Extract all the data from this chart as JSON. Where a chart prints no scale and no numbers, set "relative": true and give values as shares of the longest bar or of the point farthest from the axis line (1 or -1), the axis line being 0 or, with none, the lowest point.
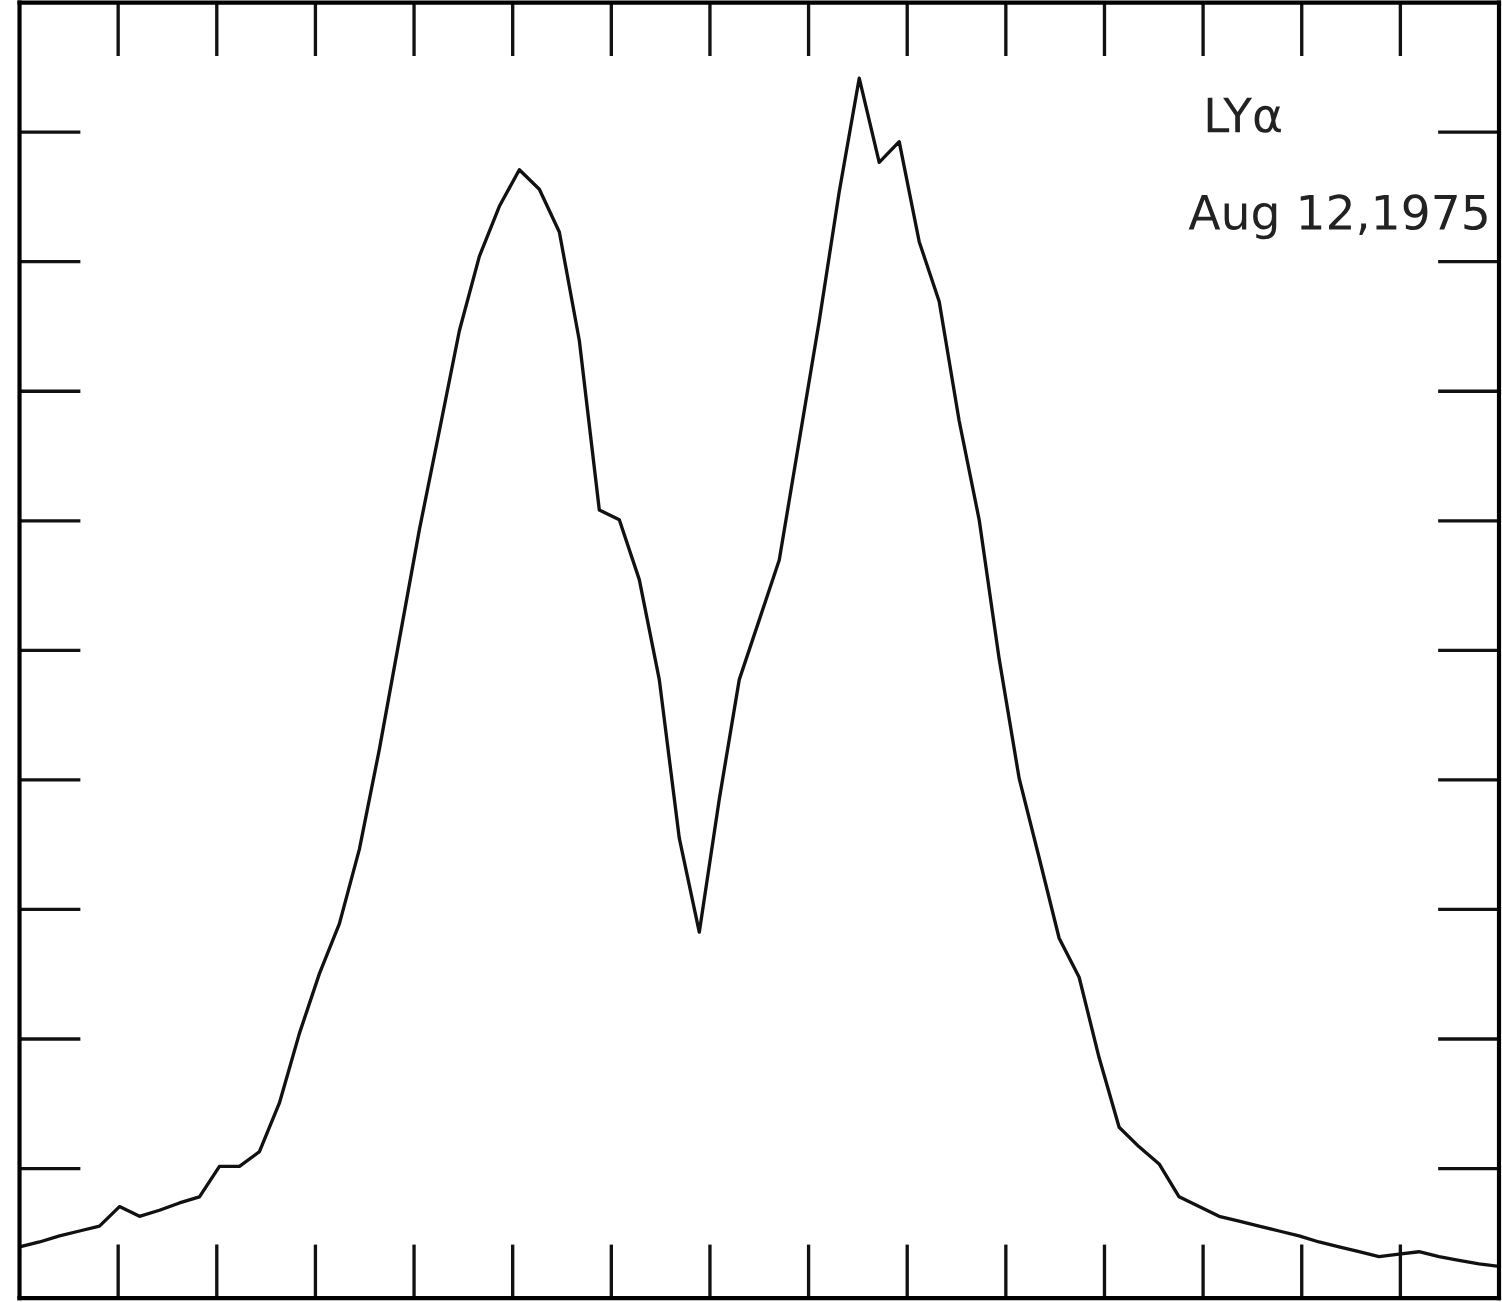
{
  "chart_data": {
    "type": "line",
    "relative": true,
    "marker": "none",
    "line_style": "solid",
    "annotations": [
      "LYα",
      "Aug 12,1975"
    ],
    "categories": [
      null,
      null,
      null,
      null,
      null,
      null,
      null,
      null,
      null,
      null,
      null,
      null,
      null,
      null,
      null,
      null,
      null,
      null,
      null,
      null,
      null,
      null,
      null,
      null,
      null,
      null,
      null,
      null,
      null,
      null,
      null,
      null,
      null,
      null,
      null,
      null,
      null,
      null,
      null,
      null,
      null,
      null,
      null,
      null,
      null,
      null,
      null,
      null,
      null,
      null,
      null,
      null,
      null,
      null,
      null,
      null,
      null,
      null,
      null,
      null,
      null,
      null,
      null,
      null,
      null,
      null,
      null,
      null,
      null,
      null,
      null,
      null,
      null,
      null,
      null
    ],
    "series": [
      {
        "color": "#111111",
        "values": [
          0.042,
          0.046,
          0.051,
          0.055,
          0.059,
          0.075,
          0.067,
          0.072,
          0.078,
          0.083,
          0.108,
          0.108,
          0.12,
          0.16,
          0.217,
          0.266,
          0.307,
          0.368,
          0.45,
          0.54,
          0.63,
          0.711,
          0.793,
          0.854,
          0.895,
          0.925,
          0.909,
          0.874,
          0.785,
          0.646,
          0.638,
          0.589,
          0.507,
          0.377,
          0.3,
          0.409,
          0.507,
          0.556,
          0.605,
          0.703,
          0.801,
          0.907,
          1.0,
          0.931,
          0.948,
          0.866,
          0.817,
          0.719,
          0.638,
          0.524,
          0.426,
          0.361,
          0.295,
          0.263,
          0.197,
          0.14,
          0.124,
          0.11,
          0.083,
          0.075,
          0.067,
          0.063,
          0.059,
          0.055,
          0.051,
          0.046,
          0.042,
          0.038,
          0.034,
          0.036,
          0.038,
          0.034,
          0.031,
          0.028,
          0.026
        ]
      }
    ]
  }
}
